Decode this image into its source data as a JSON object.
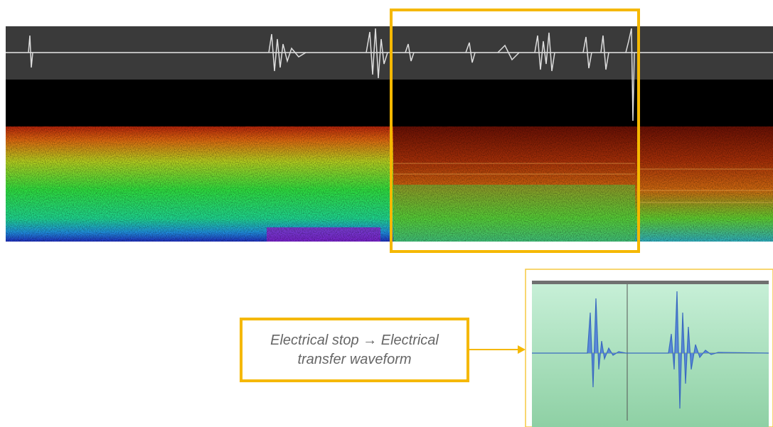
{
  "annotation": {
    "text": "Electrical stop → Electrical transfer waveform"
  }
}
